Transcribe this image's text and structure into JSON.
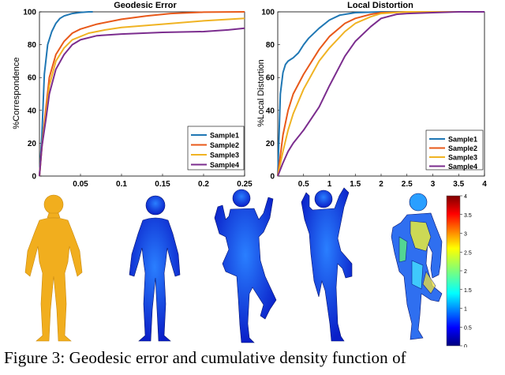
{
  "chart_data": [
    {
      "type": "line",
      "title": "Geodesic Error",
      "xlabel": "",
      "ylabel": "%Correspondence",
      "xlim": [
        0,
        0.25
      ],
      "ylim": [
        0,
        100
      ],
      "xticks": [
        "0.05",
        "0.1",
        "0.15",
        "0.2",
        "0.25"
      ],
      "yticks": [
        "0",
        "20",
        "40",
        "60",
        "80",
        "100"
      ],
      "legend_position": "bottom-right",
      "series": [
        {
          "name": "Sample1",
          "color": "#1f77b4",
          "x": [
            0,
            0.003,
            0.006,
            0.01,
            0.015,
            0.02,
            0.025,
            0.03,
            0.04,
            0.05,
            0.06,
            0.065
          ],
          "y": [
            0,
            25,
            62,
            80,
            88,
            93,
            96,
            97.5,
            99,
            99.6,
            100,
            100
          ]
        },
        {
          "name": "Sample2",
          "color": "#e8591a",
          "x": [
            0,
            0.003,
            0.008,
            0.012,
            0.02,
            0.03,
            0.04,
            0.05,
            0.07,
            0.1,
            0.13,
            0.16,
            0.2,
            0.25
          ],
          "y": [
            0,
            18,
            42,
            60,
            74,
            82,
            87,
            89.5,
            92.5,
            95.5,
            97.5,
            99,
            99.8,
            100
          ]
        },
        {
          "name": "Sample3",
          "color": "#f0b323",
          "x": [
            0,
            0.003,
            0.008,
            0.012,
            0.02,
            0.03,
            0.04,
            0.06,
            0.08,
            0.1,
            0.15,
            0.2,
            0.25
          ],
          "y": [
            0,
            18,
            38,
            55,
            70,
            78,
            83,
            87,
            89,
            90.5,
            92.5,
            94.5,
            96
          ]
        },
        {
          "name": "Sample4",
          "color": "#7b2d8e",
          "x": [
            0,
            0.003,
            0.008,
            0.012,
            0.02,
            0.03,
            0.04,
            0.05,
            0.07,
            0.1,
            0.15,
            0.2,
            0.23,
            0.25
          ],
          "y": [
            0,
            18,
            35,
            50,
            65,
            74,
            80,
            83,
            85.5,
            86.5,
            87.5,
            88,
            89,
            90
          ]
        }
      ]
    },
    {
      "type": "line",
      "title": "Local Distortion",
      "xlabel": "",
      "ylabel": "%Local Distortion",
      "xlim": [
        0,
        4
      ],
      "ylim": [
        0,
        100
      ],
      "xticks": [
        "0.5",
        "1",
        "1.5",
        "2",
        "2.5",
        "3",
        "3.5",
        "4"
      ],
      "yticks": [
        "0",
        "20",
        "40",
        "60",
        "80",
        "100"
      ],
      "legend_position": "bottom-right",
      "series": [
        {
          "name": "Sample1",
          "color": "#1f77b4",
          "x": [
            0,
            0.05,
            0.1,
            0.15,
            0.2,
            0.3,
            0.4,
            0.5,
            0.6,
            0.8,
            1,
            1.2,
            1.5,
            2,
            2.5,
            3,
            4
          ],
          "y": [
            0,
            50,
            63,
            68,
            70,
            72,
            75,
            80,
            84,
            90,
            95,
            98,
            99.5,
            100,
            100,
            100,
            100
          ]
        },
        {
          "name": "Sample2",
          "color": "#e8591a",
          "x": [
            0,
            0.1,
            0.2,
            0.3,
            0.5,
            0.8,
            1,
            1.3,
            1.5,
            1.8,
            2,
            2.5,
            3,
            4
          ],
          "y": [
            0,
            25,
            40,
            50,
            62,
            77,
            85,
            93,
            96,
            98.5,
            99.5,
            100,
            100,
            100
          ]
        },
        {
          "name": "Sample3",
          "color": "#f0b323",
          "x": [
            0,
            0.1,
            0.2,
            0.3,
            0.5,
            0.8,
            1,
            1.3,
            1.5,
            1.8,
            2,
            2.5,
            3,
            4
          ],
          "y": [
            0,
            15,
            28,
            38,
            53,
            70,
            78,
            88,
            93,
            97,
            99,
            100,
            100,
            100
          ]
        },
        {
          "name": "Sample4",
          "color": "#7b2d8e",
          "x": [
            0,
            0.1,
            0.2,
            0.3,
            0.5,
            0.8,
            1,
            1.3,
            1.5,
            1.8,
            2,
            2.3,
            2.5,
            3,
            3.5,
            4
          ],
          "y": [
            0,
            8,
            15,
            20,
            28,
            42,
            55,
            73,
            82,
            91,
            96,
            98.5,
            99,
            99.5,
            100,
            100
          ]
        }
      ]
    }
  ],
  "colorbar": {
    "ticks": [
      "0",
      "0.5",
      "1",
      "1.5",
      "2",
      "2.5",
      "3",
      "3.5",
      "4"
    ]
  },
  "caption": "Figure 3: Geodesic error and cumulative density function of"
}
